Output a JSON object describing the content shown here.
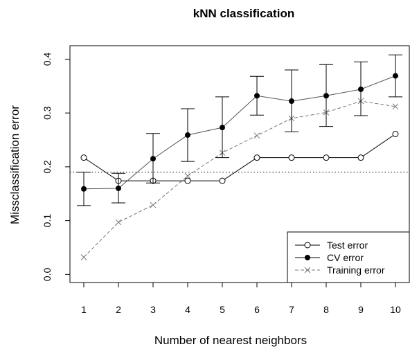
{
  "chart_data": {
    "type": "line",
    "title": "kNN classification",
    "xlabel": "Number of nearest neighbors",
    "ylabel": "Missclassification error",
    "x": [
      1,
      2,
      3,
      4,
      5,
      6,
      7,
      8,
      9,
      10
    ],
    "xlim": [
      0.6,
      10.4
    ],
    "ylim": [
      -0.015,
      0.425
    ],
    "x_ticks": [
      "1",
      "2",
      "3",
      "4",
      "5",
      "6",
      "7",
      "8",
      "9",
      "10"
    ],
    "y_ticks": [
      "0.0",
      "0.1",
      "0.2",
      "0.3",
      "0.4"
    ],
    "grid": false,
    "legend_position": "bottom-right",
    "reference_line": {
      "y": 0.19,
      "style": "dotted"
    },
    "series": [
      {
        "name": "Test error",
        "marker": "open-circle",
        "line": "solid",
        "color": "#000000",
        "values": [
          0.217,
          0.174,
          0.174,
          0.174,
          0.174,
          0.217,
          0.217,
          0.217,
          0.217,
          0.261
        ]
      },
      {
        "name": "CV error",
        "marker": "filled-circle",
        "line": "solid",
        "color": "#555555",
        "values": [
          0.159,
          0.16,
          0.215,
          0.259,
          0.273,
          0.332,
          0.322,
          0.332,
          0.344,
          0.369
        ],
        "error_low": [
          0.128,
          0.133,
          0.17,
          0.21,
          0.217,
          0.296,
          0.265,
          0.275,
          0.295,
          0.33
        ],
        "error_high": [
          0.19,
          0.188,
          0.262,
          0.308,
          0.33,
          0.368,
          0.38,
          0.39,
          0.395,
          0.408
        ]
      },
      {
        "name": "Training error",
        "marker": "cross",
        "line": "dashed",
        "color": "#777777",
        "values": [
          0.032,
          0.097,
          0.129,
          0.183,
          0.226,
          0.258,
          0.29,
          0.301,
          0.322,
          0.312
        ]
      }
    ]
  }
}
